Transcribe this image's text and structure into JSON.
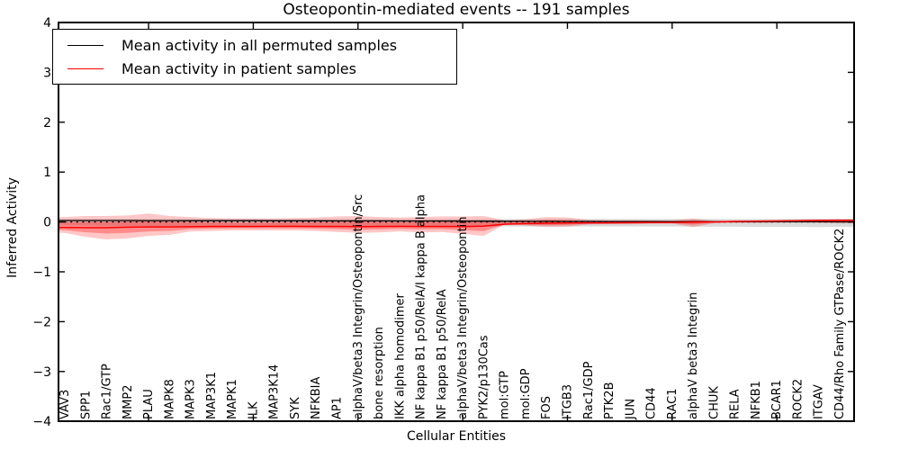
{
  "chart_data": {
    "type": "line",
    "title": "Osteopontin-mediated events -- 191 samples",
    "xlabel": "Cellular Entities",
    "ylabel": "Inferred Activity",
    "ylim": [
      -4,
      4
    ],
    "ytick_labels": [
      "4",
      "3",
      "2",
      "1",
      "0",
      "−1",
      "−2",
      "−3",
      "−4"
    ],
    "ytick_values": [
      4,
      3,
      2,
      1,
      0,
      -1,
      -2,
      -3,
      -4
    ],
    "xtick_category_indices": [
      4,
      9,
      14,
      19,
      24,
      29,
      34
    ],
    "grid": false,
    "legend_position": "upper left",
    "legend": [
      {
        "label": "Mean activity in all permuted samples",
        "color": "#000000"
      },
      {
        "label": "Mean activity in patient samples",
        "color": "#ff0000"
      }
    ],
    "zero_line": {
      "value": 0,
      "style": "dotted",
      "color": "#000000"
    },
    "categories": [
      "VAV3",
      "SPP1",
      "Rac1/GTP",
      "MMP2",
      "PLAU",
      "MAPK8",
      "MAPK3",
      "MAP3K1",
      "MAPK1",
      "ILK",
      "MAP3K14",
      "SYK",
      "NFKBIA",
      "AP1",
      "alphaV/beta3 Integrin/Osteopontin/Src",
      "bone resorption",
      "IKK alpha homodimer",
      "NF kappa B1 p50/RelA/I kappa B alpha",
      "NF kappa B1 p50/RelA",
      "alphaV/beta3 Integrin/Osteopontin",
      "PYK2/p130Cas",
      "mol:GTP",
      "mol:GDP",
      "FOS",
      "ITGB3",
      "Rac1/GDP",
      "PTK2B",
      "JUN",
      "CD44",
      "RAC1",
      "alphaV beta3 Integrin",
      "CHUK",
      "RELA",
      "NFKB1",
      "BCAR1",
      "ROCK2",
      "ITGAV",
      "CD44/Rho Family GTPase/ROCK2"
    ],
    "series": [
      {
        "name": "Mean activity in all permuted samples",
        "color": "#000000",
        "width": 1.3,
        "values": [
          0.028,
          0.028,
          0.028,
          0.028,
          0.027,
          0.027,
          0.026,
          0.026,
          0.025,
          0.025,
          0.024,
          0.024,
          0.023,
          0.022,
          0.022,
          0.021,
          0.02,
          0.02,
          0.019,
          0.018,
          0.017,
          0.015,
          0.013,
          0.012,
          0.011,
          0.01,
          0.009,
          0.008,
          0.007,
          0.006,
          0.005,
          0.005,
          0.004,
          0.004,
          0.003,
          0.003,
          0.003,
          0.002
        ]
      },
      {
        "name": "Mean activity in patient samples",
        "color": "#ff0000",
        "width": 1.5,
        "values": [
          -0.11,
          -0.115,
          -0.115,
          -0.105,
          -0.1,
          -0.1,
          -0.095,
          -0.09,
          -0.09,
          -0.09,
          -0.088,
          -0.088,
          -0.09,
          -0.09,
          -0.095,
          -0.09,
          -0.088,
          -0.09,
          -0.09,
          -0.092,
          -0.085,
          -0.045,
          -0.035,
          -0.025,
          -0.02,
          -0.02,
          -0.018,
          -0.015,
          -0.012,
          -0.01,
          -0.005,
          0.0,
          0.01,
          0.015,
          0.02,
          0.025,
          0.03,
          0.035
        ]
      }
    ],
    "bands": [
      {
        "name": "permuted-samples-range",
        "color": "rgba(0,0,0,0.14)",
        "upper": [
          0.05,
          0.05,
          0.055,
          0.055,
          0.055,
          0.055,
          0.055,
          0.055,
          0.055,
          0.055,
          0.055,
          0.055,
          0.055,
          0.055,
          0.055,
          0.055,
          0.055,
          0.055,
          0.055,
          0.055,
          0.06,
          0.06,
          0.06,
          0.06,
          0.06,
          0.06,
          0.06,
          0.06,
          0.06,
          0.06,
          0.06,
          0.06,
          0.06,
          0.06,
          0.06,
          0.065,
          0.065,
          0.065
        ],
        "lower": [
          -0.07,
          -0.075,
          -0.08,
          -0.08,
          -0.08,
          -0.08,
          -0.08,
          -0.08,
          -0.08,
          -0.08,
          -0.08,
          -0.08,
          -0.08,
          -0.08,
          -0.085,
          -0.085,
          -0.085,
          -0.085,
          -0.085,
          -0.085,
          -0.09,
          -0.09,
          -0.09,
          -0.09,
          -0.09,
          -0.09,
          -0.09,
          -0.09,
          -0.09,
          -0.09,
          -0.095,
          -0.095,
          -0.095,
          -0.1,
          -0.1,
          -0.1,
          -0.105,
          -0.1
        ]
      },
      {
        "name": "patient-samples-range-outer",
        "color": "rgba(255,0,0,0.22)",
        "upper": [
          0.1,
          0.12,
          0.12,
          0.13,
          0.17,
          0.12,
          0.1,
          0.08,
          0.07,
          0.07,
          0.07,
          0.08,
          0.09,
          0.11,
          0.12,
          0.1,
          0.09,
          0.1,
          0.11,
          0.11,
          0.12,
          0.03,
          0.05,
          0.1,
          0.09,
          0.04,
          0.035,
          0.035,
          0.03,
          0.03,
          0.07,
          0.02,
          0.025,
          0.03,
          0.035,
          0.04,
          0.045,
          0.055
        ],
        "lower": [
          -0.22,
          -0.3,
          -0.35,
          -0.33,
          -0.28,
          -0.26,
          -0.19,
          -0.18,
          -0.17,
          -0.17,
          -0.17,
          -0.17,
          -0.18,
          -0.2,
          -0.22,
          -0.21,
          -0.19,
          -0.21,
          -0.2,
          -0.24,
          -0.28,
          -0.05,
          -0.07,
          -0.1,
          -0.095,
          -0.05,
          -0.045,
          -0.045,
          -0.04,
          -0.035,
          -0.1,
          -0.025,
          -0.02,
          -0.02,
          -0.015,
          -0.015,
          -0.02,
          -0.03
        ]
      },
      {
        "name": "patient-samples-range-inner",
        "color": "rgba(255,0,0,0.30)",
        "upper": [
          -0.005,
          0.003,
          0.003,
          0.013,
          0.035,
          0.01,
          0.003,
          -0.005,
          -0.01,
          -0.01,
          -0.009,
          -0.004,
          0.0,
          0.01,
          0.013,
          0.005,
          0.001,
          0.005,
          0.01,
          0.009,
          0.018,
          -0.008,
          0.008,
          0.038,
          0.035,
          0.01,
          0.009,
          0.01,
          0.009,
          0.01,
          0.033,
          0.01,
          0.018,
          0.023,
          0.028,
          0.033,
          0.038,
          0.045
        ],
        "lower": [
          -0.165,
          -0.208,
          -0.233,
          -0.218,
          -0.19,
          -0.18,
          -0.143,
          -0.135,
          -0.13,
          -0.13,
          -0.129,
          -0.129,
          -0.135,
          -0.145,
          -0.158,
          -0.15,
          -0.139,
          -0.15,
          -0.145,
          -0.166,
          -0.183,
          -0.048,
          -0.053,
          -0.063,
          -0.058,
          -0.035,
          -0.032,
          -0.03,
          -0.026,
          -0.023,
          -0.053,
          -0.013,
          -0.005,
          -0.003,
          0.003,
          0.005,
          0.005,
          0.003
        ]
      }
    ]
  }
}
